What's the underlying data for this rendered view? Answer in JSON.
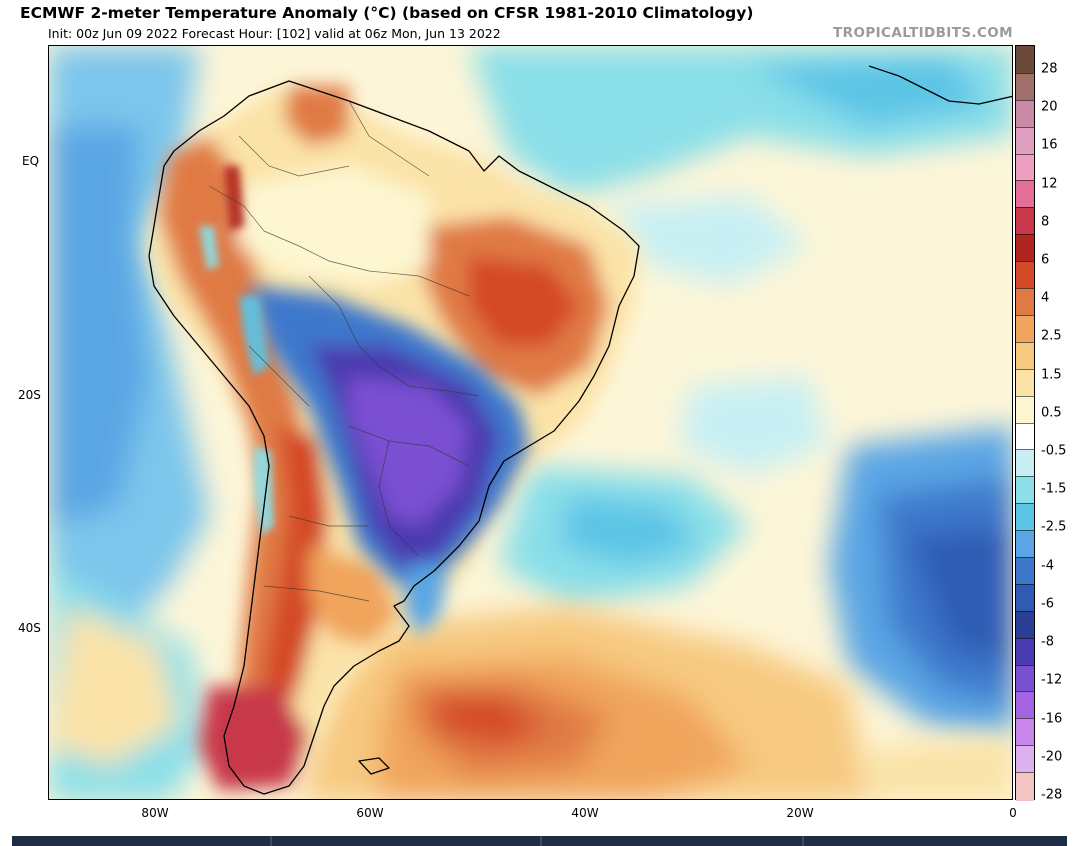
{
  "header": {
    "title": "ECMWF 2-meter Temperature Anomaly (°C) (based on CFSR 1981-2010 Climatology)",
    "subtitle": "Init: 00z Jun 09 2022   Forecast Hour: [102]   valid at 06z Mon, Jun 13 2022",
    "credit": "TROPICALTIDBITS.COM"
  },
  "axes": {
    "lat_labels": [
      "EQ",
      "20S",
      "40S"
    ],
    "lon_labels": [
      "80W",
      "60W",
      "40W",
      "20W",
      "0"
    ]
  },
  "colorbar": {
    "labels": [
      "28",
      "20",
      "16",
      "12",
      "8",
      "6",
      "4",
      "2.5",
      "1.5",
      "0.5",
      "-0.5",
      "-1.5",
      "-2.5",
      "-4",
      "-6",
      "-8",
      "-12",
      "-16",
      "-20",
      "-28"
    ],
    "colors": [
      "#6b4a3a",
      "#a0706a",
      "#c98aa8",
      "#e0a0c0",
      "#ef9fbf",
      "#e36f98",
      "#c8384a",
      "#b0261f",
      "#d44a28",
      "#e07a45",
      "#f0a45c",
      "#f7c980",
      "#fbe3a8",
      "#fdf6d0",
      "#ffffff",
      "#c8f0f4",
      "#8adfe9",
      "#5cc4e6",
      "#5aa6e4",
      "#3d78cc",
      "#2f5bb4",
      "#2b3f94",
      "#4b3bb0",
      "#7a4fd1",
      "#a463e0",
      "#c887ea",
      "#ddb0ee",
      "#f3c4c4"
    ]
  },
  "map": {
    "region": "South America and South Atlantic",
    "variable": "2-meter temperature anomaly"
  }
}
